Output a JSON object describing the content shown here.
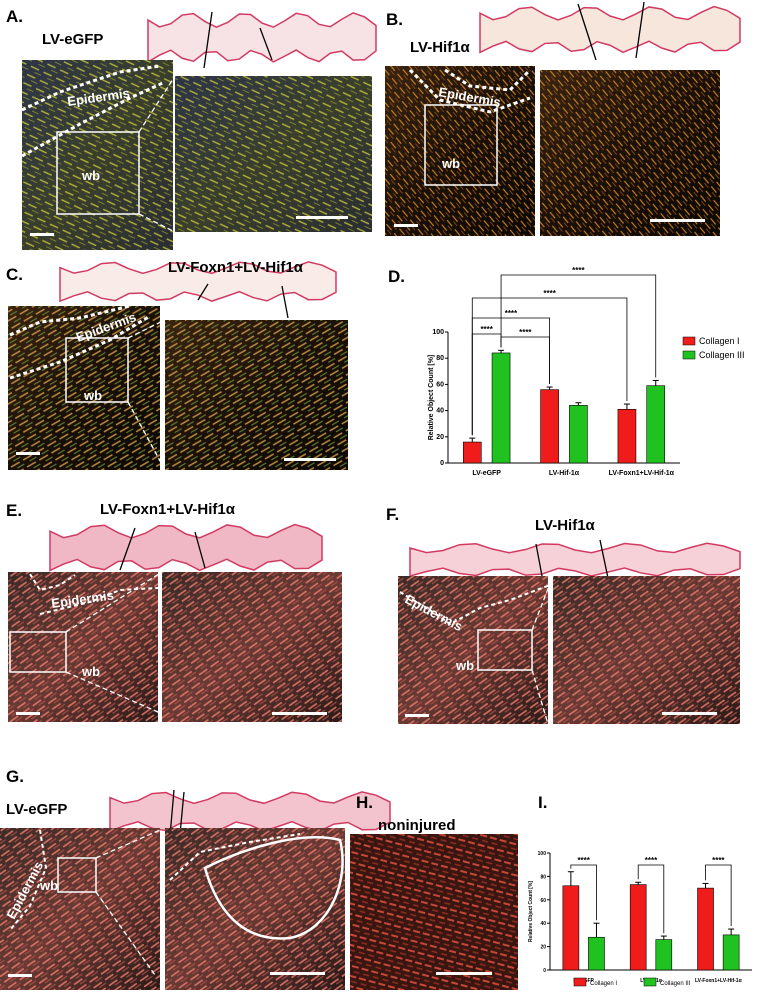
{
  "panels": [
    {
      "label": "A.",
      "title": "LV-eGFP",
      "tags": [
        "Epidermis",
        "wb"
      ]
    },
    {
      "label": "B.",
      "title": "LV-Hif1α",
      "tags": [
        "Epidermis",
        "wb"
      ]
    },
    {
      "label": "C.",
      "title": "LV-Foxn1+LV-Hif1α",
      "tags": [
        "Epidermis",
        "wb"
      ]
    },
    {
      "label": "D."
    },
    {
      "label": "E.",
      "title": "LV-Foxn1+LV-Hif1α",
      "tags": [
        "Epidermis",
        "wb"
      ]
    },
    {
      "label": "F.",
      "title": "LV-Hif1α",
      "tags": [
        "Epidermis",
        "wb"
      ]
    },
    {
      "label": "G.",
      "title": "LV-eGFP",
      "tags": [
        "Epidermis",
        "wb"
      ]
    },
    {
      "label": "H.",
      "title": "noninjured"
    },
    {
      "label": "I."
    }
  ],
  "chart_data": [
    {
      "type": "bar",
      "y_label": "Relative Object Count [%]",
      "categories": [
        "LV-eGFP",
        "LV-Hif-1α",
        "LV-Foxn1+LV-Hif-1α"
      ],
      "series": [
        {
          "name": "Collagen I",
          "color": "#f01c1c",
          "values": [
            16,
            56,
            41
          ],
          "errors": [
            3,
            2,
            4
          ]
        },
        {
          "name": "Collagen III",
          "color": "#1fc21f",
          "values": [
            84,
            44,
            59
          ],
          "errors": [
            2,
            2,
            4
          ]
        }
      ],
      "ylim": [
        0,
        100
      ],
      "yticks": [
        0,
        20,
        40,
        60,
        80,
        100
      ],
      "legend": "right",
      "annotations": [
        "****",
        "****",
        "****",
        "****",
        "****"
      ]
    },
    {
      "type": "bar",
      "y_label": "Relative Object Count [%]",
      "categories": [
        "LV-eGFP",
        "LV-Hif-1α",
        "LV-Foxn1+LV-Hif-1α"
      ],
      "series": [
        {
          "name": "Collagen I",
          "color": "#f01c1c",
          "values": [
            72,
            73,
            70
          ],
          "errors": [
            12,
            2,
            4
          ]
        },
        {
          "name": "Collagen III",
          "color": "#1fc21f",
          "values": [
            28,
            26,
            30
          ],
          "errors": [
            12,
            3,
            5
          ]
        }
      ],
      "ylim": [
        0,
        100
      ],
      "yticks": [
        0,
        20,
        40,
        60,
        80,
        100
      ],
      "legend": "bottom",
      "annotations": [
        "****",
        "****",
        "****"
      ]
    }
  ]
}
